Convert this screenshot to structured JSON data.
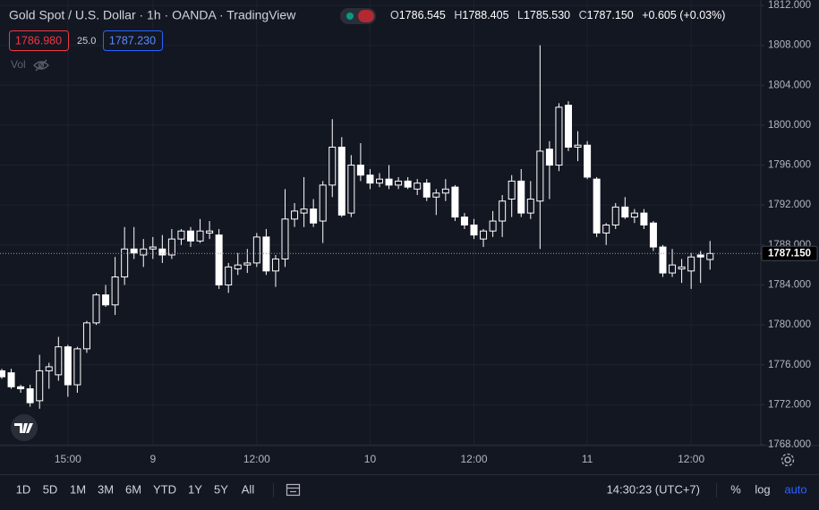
{
  "chart_data": {
    "type": "candlestick",
    "title": "Gold Spot / U.S. Dollar · 1h · OANDA · TradingView",
    "legend": [
      {
        "label": "O",
        "value": "1786.545"
      },
      {
        "label": "H",
        "value": "1788.405"
      },
      {
        "label": "L",
        "value": "1785.530"
      },
      {
        "label": "C",
        "value": "1787.150"
      }
    ],
    "change": "+0.605 (+0.03%)",
    "sell": "1786.980",
    "spread": "25.0",
    "buy": "1787.230",
    "volume_label": "Vol",
    "color": "#ffffff",
    "grid": true,
    "categories": [
      null,
      null,
      null,
      null,
      null,
      null,
      null,
      "15:00",
      null,
      null,
      null,
      null,
      null,
      null,
      null,
      null,
      "9",
      null,
      null,
      null,
      null,
      null,
      null,
      null,
      null,
      null,
      null,
      "12:00",
      null,
      null,
      null,
      null,
      null,
      null,
      null,
      null,
      null,
      null,
      null,
      "10",
      null,
      null,
      null,
      null,
      null,
      null,
      null,
      null,
      null,
      null,
      "12:00",
      null,
      null,
      null,
      null,
      null,
      null,
      null,
      null,
      null,
      null,
      null,
      "11",
      null,
      null,
      null,
      null,
      null,
      null,
      null,
      null,
      null,
      null,
      "12:00",
      null,
      null
    ],
    "open": [
      1775.4,
      1775.2,
      1773.8,
      1773.6,
      1772.4,
      1775.4,
      1775.0,
      1777.8,
      1774.0,
      1777.6,
      1780.2,
      1783.0,
      1782.0,
      1784.8,
      1787.6,
      1787.0,
      1787.6,
      1787.6,
      1787.0,
      1788.6,
      1789.4,
      1788.4,
      1789.2,
      1789.0,
      1784.0,
      1785.6,
      1786.0,
      1786.2,
      1788.8,
      1785.4,
      1786.6,
      1790.6,
      1791.2,
      1791.6,
      1790.4,
      1794.0,
      1797.8,
      1791.2,
      1796.0,
      1795.0,
      1794.2,
      1794.6,
      1794.0,
      1794.4,
      1793.6,
      1794.2,
      1792.8,
      1793.2,
      1793.8,
      1790.8,
      1790.0,
      1788.6,
      1789.4,
      1790.4,
      1792.6,
      1794.4,
      1791.2,
      1792.4,
      1797.6,
      1796.0,
      1802.0,
      1797.8,
      1798.0,
      1794.6,
      1789.2,
      1790.0,
      1791.8,
      1790.8,
      1791.2,
      1790.2,
      1787.8,
      1785.2,
      1785.6,
      1785.4,
      1787.0,
      1786.545
    ],
    "high": [
      1775.6,
      1775.6,
      1774.0,
      1774.0,
      1777.0,
      1776.2,
      1778.8,
      1778.0,
      1777.8,
      1780.4,
      1783.2,
      1784.0,
      1786.8,
      1789.8,
      1789.8,
      1788.6,
      1788.8,
      1789.0,
      1789.6,
      1789.6,
      1789.8,
      1790.6,
      1790.4,
      1789.6,
      1786.2,
      1787.2,
      1787.6,
      1789.2,
      1789.6,
      1787.0,
      1793.6,
      1792.2,
      1794.8,
      1792.6,
      1794.4,
      1800.6,
      1798.8,
      1797.0,
      1798.2,
      1795.6,
      1795.2,
      1796.0,
      1794.8,
      1794.8,
      1794.6,
      1794.6,
      1793.6,
      1794.6,
      1794.0,
      1791.2,
      1790.6,
      1789.6,
      1791.4,
      1793.0,
      1795.0,
      1795.6,
      1794.4,
      1808.0,
      1798.4,
      1802.2,
      1802.4,
      1799.4,
      1798.4,
      1794.8,
      1790.2,
      1792.2,
      1792.8,
      1791.6,
      1791.6,
      1790.4,
      1788.0,
      1787.6,
      1786.6,
      1787.2,
      1787.4,
      1788.405
    ],
    "low": [
      1774.6,
      1773.6,
      1773.2,
      1771.8,
      1771.6,
      1773.6,
      1774.4,
      1772.8,
      1773.2,
      1777.2,
      1780.0,
      1781.8,
      1781.0,
      1784.0,
      1786.6,
      1785.8,
      1786.6,
      1786.2,
      1786.6,
      1788.0,
      1787.8,
      1788.2,
      1788.6,
      1783.6,
      1783.2,
      1785.0,
      1785.2,
      1785.8,
      1785.0,
      1783.8,
      1785.8,
      1789.8,
      1789.8,
      1789.8,
      1788.2,
      1792.8,
      1790.8,
      1790.8,
      1794.4,
      1793.6,
      1793.8,
      1793.6,
      1793.6,
      1793.6,
      1793.0,
      1792.4,
      1791.0,
      1792.4,
      1790.4,
      1789.6,
      1788.6,
      1787.8,
      1788.8,
      1788.8,
      1790.8,
      1790.8,
      1790.6,
      1787.6,
      1792.6,
      1795.4,
      1797.4,
      1796.4,
      1794.6,
      1788.8,
      1788.0,
      1789.6,
      1790.6,
      1790.2,
      1789.6,
      1787.4,
      1784.8,
      1784.8,
      1784.2,
      1783.6,
      1784.2,
      1785.53
    ],
    "close": [
      1774.8,
      1773.8,
      1773.6,
      1772.2,
      1775.4,
      1775.8,
      1777.8,
      1774.0,
      1777.6,
      1780.2,
      1783.0,
      1782.0,
      1784.8,
      1787.6,
      1787.2,
      1787.6,
      1787.8,
      1787.0,
      1788.6,
      1789.4,
      1788.4,
      1789.4,
      1789.4,
      1784.0,
      1785.8,
      1786.0,
      1786.2,
      1788.8,
      1785.4,
      1786.6,
      1790.6,
      1791.4,
      1791.6,
      1790.2,
      1794.0,
      1797.8,
      1791.0,
      1796.0,
      1795.0,
      1794.2,
      1794.6,
      1794.0,
      1794.4,
      1793.8,
      1794.2,
      1792.8,
      1793.2,
      1793.6,
      1790.8,
      1790.0,
      1789.0,
      1789.4,
      1790.4,
      1792.4,
      1794.4,
      1791.2,
      1792.6,
      1797.4,
      1796.0,
      1801.8,
      1797.8,
      1798.0,
      1794.8,
      1789.2,
      1790.0,
      1791.8,
      1790.8,
      1791.2,
      1790.0,
      1787.8,
      1785.2,
      1786.0,
      1785.8,
      1786.8,
      1786.8,
      1787.15
    ],
    "ylim": [
      1768,
      1812
    ],
    "yticks": [
      {
        "value": 1812,
        "label": "1812.000"
      },
      {
        "value": 1808,
        "label": "1808.000"
      },
      {
        "value": 1804,
        "label": "1804.000"
      },
      {
        "value": 1800,
        "label": "1800.000"
      },
      {
        "value": 1796,
        "label": "1796.000"
      },
      {
        "value": 1792,
        "label": "1792.000"
      },
      {
        "value": 1788,
        "label": "1788.000"
      },
      {
        "value": 1784,
        "label": "1784.000"
      },
      {
        "value": 1780,
        "label": "1780.000"
      },
      {
        "value": 1776,
        "label": "1776.000"
      },
      {
        "value": 1772,
        "label": "1772.000"
      },
      {
        "value": 1768,
        "label": "1768.000"
      }
    ],
    "last_price": {
      "value": 1787.15,
      "label": "1787.150"
    }
  },
  "toolbar": {
    "ranges": [
      "1D",
      "5D",
      "1M",
      "3M",
      "6M",
      "YTD",
      "1Y",
      "5Y",
      "All"
    ],
    "clock": "14:30:23 (UTC+7)",
    "percent": "%",
    "log": "log",
    "auto": "auto"
  }
}
